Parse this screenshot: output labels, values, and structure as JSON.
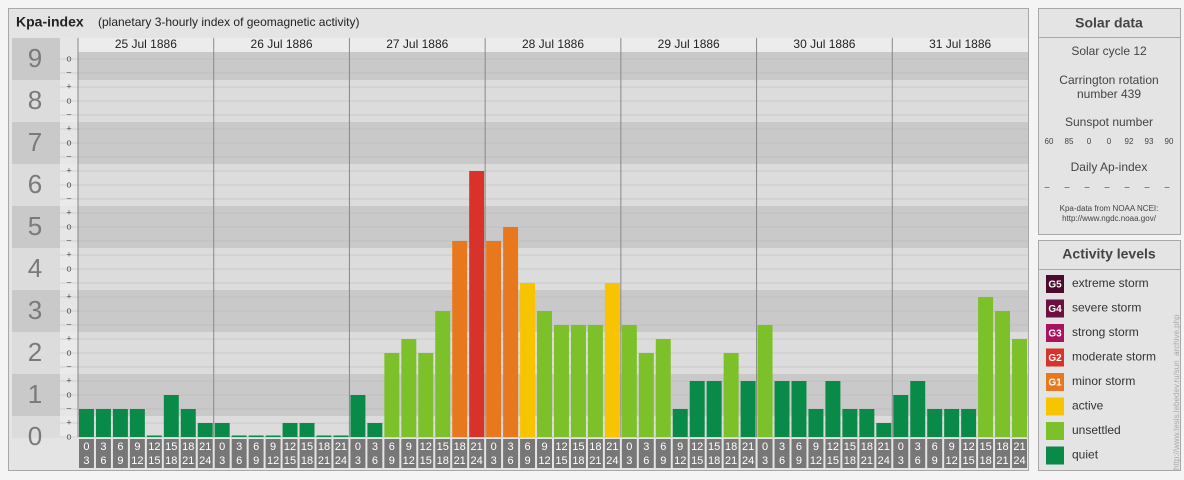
{
  "chart_data": {
    "type": "bar",
    "title": "Kpa-index",
    "subtitle": "(planetary 3-hourly index of geomagnetic activity)",
    "ylim": [
      0,
      9.5
    ],
    "yticks": [
      0,
      1,
      2,
      3,
      4,
      5,
      6,
      7,
      8,
      9
    ],
    "minor_ticks": [
      {
        "value": 0,
        "label": "o"
      },
      {
        "value": 0.333,
        "label": "+"
      },
      {
        "value": 0.667,
        "label": "−"
      },
      {
        "value": 1,
        "label": "o"
      },
      {
        "value": 1.333,
        "label": "+"
      },
      {
        "value": 1.667,
        "label": "−"
      },
      {
        "value": 2,
        "label": "o"
      },
      {
        "value": 2.333,
        "label": "+"
      },
      {
        "value": 2.667,
        "label": "−"
      },
      {
        "value": 3,
        "label": "o"
      },
      {
        "value": 3.333,
        "label": "+"
      },
      {
        "value": 3.667,
        "label": "−"
      },
      {
        "value": 4,
        "label": "o"
      },
      {
        "value": 4.333,
        "label": "+"
      },
      {
        "value": 4.667,
        "label": "−"
      },
      {
        "value": 5,
        "label": "o"
      },
      {
        "value": 5.333,
        "label": "+"
      },
      {
        "value": 5.667,
        "label": "−"
      },
      {
        "value": 6,
        "label": "o"
      },
      {
        "value": 6.333,
        "label": "+"
      },
      {
        "value": 6.667,
        "label": "−"
      },
      {
        "value": 7,
        "label": "o"
      },
      {
        "value": 7.333,
        "label": "+"
      },
      {
        "value": 7.667,
        "label": "−"
      },
      {
        "value": 8,
        "label": "o"
      },
      {
        "value": 8.333,
        "label": "+"
      },
      {
        "value": 8.667,
        "label": "−"
      },
      {
        "value": 9,
        "label": "o"
      }
    ],
    "hour_labels": [
      [
        "0",
        "3"
      ],
      [
        "3",
        "6"
      ],
      [
        "6",
        "9"
      ],
      [
        "9",
        "12"
      ],
      [
        "12",
        "15"
      ],
      [
        "15",
        "18"
      ],
      [
        "18",
        "21"
      ],
      [
        "21",
        "24"
      ]
    ],
    "days": [
      {
        "date": "25 Jul 1886",
        "values": [
          0.667,
          0.667,
          0.667,
          0.667,
          0,
          1,
          0.667,
          0.333
        ],
        "colors": [
          "#0a8a48",
          "#0a8a48",
          "#0a8a48",
          "#0a8a48",
          "#0a8a48",
          "#0a8a48",
          "#0a8a48",
          "#0a8a48"
        ]
      },
      {
        "date": "26 Jul 1886",
        "values": [
          0.333,
          0,
          0,
          0,
          0.333,
          0.333,
          0,
          0
        ],
        "colors": [
          "#0a8a48",
          "#0a8a48",
          "#0a8a48",
          "#0a8a48",
          "#0a8a48",
          "#0a8a48",
          "#0a8a48",
          "#0a8a48"
        ]
      },
      {
        "date": "27 Jul 1886",
        "values": [
          1,
          0.333,
          2,
          2.333,
          2,
          3,
          4.667,
          6.333
        ],
        "colors": [
          "#0a8a48",
          "#0a8a48",
          "#7cc02a",
          "#7cc02a",
          "#7cc02a",
          "#7cc02a",
          "#e8781e",
          "#d8322a"
        ]
      },
      {
        "date": "28 Jul 1886",
        "values": [
          4.667,
          5,
          3.667,
          3,
          2.667,
          2.667,
          2.667,
          3.667
        ],
        "colors": [
          "#e8781e",
          "#e8781e",
          "#f8c400",
          "#7cc02a",
          "#7cc02a",
          "#7cc02a",
          "#7cc02a",
          "#f8c400"
        ]
      },
      {
        "date": "29 Jul 1886",
        "values": [
          2.667,
          2,
          2.333,
          0.667,
          1.333,
          1.333,
          2,
          1.333
        ],
        "colors": [
          "#7cc02a",
          "#7cc02a",
          "#7cc02a",
          "#0a8a48",
          "#0a8a48",
          "#0a8a48",
          "#7cc02a",
          "#0a8a48"
        ]
      },
      {
        "date": "30 Jul 1886",
        "values": [
          2.667,
          1.333,
          1.333,
          0.667,
          1.333,
          0.667,
          0.667,
          0.333
        ],
        "colors": [
          "#7cc02a",
          "#0a8a48",
          "#0a8a48",
          "#0a8a48",
          "#0a8a48",
          "#0a8a48",
          "#0a8a48",
          "#0a8a48"
        ]
      },
      {
        "date": "31 Jul 1886",
        "values": [
          1,
          1.333,
          0.667,
          0.667,
          0.667,
          3.333,
          3,
          2.333
        ],
        "colors": [
          "#0a8a48",
          "#0a8a48",
          "#0a8a48",
          "#0a8a48",
          "#0a8a48",
          "#7cc02a",
          "#7cc02a",
          "#7cc02a"
        ]
      }
    ]
  },
  "solar_data": {
    "title": "Solar data",
    "cycle": "Solar cycle 12",
    "carrington": [
      "Carrington rotation",
      "number 439"
    ],
    "sunspot_label": "Sunspot number",
    "sunspots": [
      60,
      85,
      0,
      0,
      92,
      93,
      90
    ],
    "ap_label": "Daily Ap-index",
    "ap": [
      "–",
      "–",
      "–",
      "–",
      "–",
      "–",
      "–"
    ],
    "source": [
      "Kpa-data from NOAA NCEI:",
      "http://www.ngdc.noaa.gov/"
    ]
  },
  "activity_levels": {
    "title": "Activity levels",
    "levels": [
      {
        "code": "G5",
        "name": "extreme storm",
        "color": "#4a0a2a"
      },
      {
        "code": "G4",
        "name": "severe storm",
        "color": "#6b1040"
      },
      {
        "code": "G3",
        "name": "strong storm",
        "color": "#a8125e"
      },
      {
        "code": "G2",
        "name": "moderate storm",
        "color": "#d8322a"
      },
      {
        "code": "G1",
        "name": "minor storm",
        "color": "#e8781e"
      },
      {
        "name": "active",
        "color": "#f8c400"
      },
      {
        "name": "unsettled",
        "color": "#7cc02a"
      },
      {
        "name": "quiet",
        "color": "#0a8a48"
      }
    ]
  },
  "credit": "http://www.tesis.lebedev.ru/sun_archive.php"
}
